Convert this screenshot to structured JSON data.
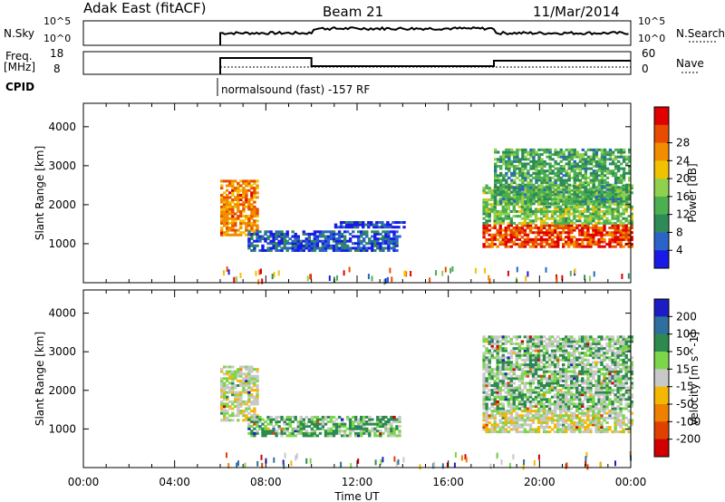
{
  "header": {
    "station": "Adak East (fitACF)",
    "beam": "Beam 21",
    "date": "11/Mar/2014"
  },
  "strips": {
    "nsky_label": "N.Sky",
    "nsky_ticks": [
      "10^5",
      "10^0"
    ],
    "nsearch_label": "N.Search",
    "nsearch_ticks": [
      "10^5",
      "10^0"
    ],
    "freq_label": "Freq.",
    "freq_unit": "[MHz]",
    "freq_ticks": [
      "18",
      "8"
    ],
    "nave_label": "Nave",
    "nave_ticks": [
      "60",
      "0"
    ],
    "cpid_label": "CPID",
    "cpid_text": "normalsound (fast) -157 RF"
  },
  "colors": {
    "power": [
      "#1a1ae6",
      "#2a64c8",
      "#2e8b57",
      "#4caf50",
      "#8fd14f",
      "#f2c200",
      "#f28c00",
      "#e84c00",
      "#e00000"
    ],
    "velocity": [
      "#1c1cc4",
      "#2f6f9f",
      "#2d8a4e",
      "#7bd64a",
      "#c8c8c8",
      "#f5b800",
      "#f08000",
      "#e04000",
      "#d00000"
    ]
  },
  "chart_data": [
    {
      "type": "heatmap",
      "title": "",
      "xlabel": "",
      "ylabel": "Slant Range [km]",
      "x_ticks": [
        "00:00",
        "04:00",
        "08:00",
        "12:00",
        "16:00",
        "20:00",
        "00:00"
      ],
      "y_ticks": [
        1000,
        2000,
        3000,
        4000
      ],
      "ylim": [
        0,
        4600
      ],
      "colorbar": {
        "label": "Power [dB]",
        "ticks": [
          4,
          8,
          12,
          16,
          20,
          24,
          28
        ]
      },
      "regions": [
        {
          "t0": 6.0,
          "t1": 7.6,
          "r0": 1200,
          "r1": 2600,
          "level": 0.75
        },
        {
          "t0": 7.2,
          "t1": 13.8,
          "r0": 800,
          "r1": 1300,
          "level": 0.15
        },
        {
          "t0": 11.0,
          "t1": 14.0,
          "r0": 1400,
          "r1": 1550,
          "level": 0.12
        },
        {
          "t0": 17.5,
          "t1": 24.0,
          "r0": 900,
          "r1": 1500,
          "level": 0.85
        },
        {
          "t0": 17.5,
          "t1": 24.0,
          "r0": 1500,
          "r1": 2500,
          "level": 0.45
        },
        {
          "t0": 18.0,
          "t1": 24.0,
          "r0": 2000,
          "r1": 3400,
          "level": 0.35
        }
      ]
    },
    {
      "type": "heatmap",
      "title": "",
      "xlabel": "Time UT",
      "ylabel": "Slant Range [km]",
      "x_ticks": [
        "00:00",
        "04:00",
        "08:00",
        "12:00",
        "16:00",
        "20:00",
        "00:00"
      ],
      "y_ticks": [
        1000,
        2000,
        3000,
        4000
      ],
      "ylim": [
        0,
        4600
      ],
      "colorbar": {
        "label": "Velocity [m s^-1]",
        "ticks": [
          200,
          100,
          50,
          15,
          -15,
          -50,
          -100,
          -200
        ]
      },
      "regions": [
        {
          "t0": 6.0,
          "t1": 7.6,
          "r0": 1200,
          "r1": 2600,
          "velocity": 0
        },
        {
          "t0": 7.2,
          "t1": 13.8,
          "r0": 800,
          "r1": 1300,
          "velocity": 30
        },
        {
          "t0": 17.5,
          "t1": 24.0,
          "r0": 900,
          "r1": 1500,
          "velocity": 0
        },
        {
          "t0": 17.5,
          "t1": 24.0,
          "r0": 1500,
          "r1": 3400,
          "velocity": 20
        }
      ]
    }
  ]
}
